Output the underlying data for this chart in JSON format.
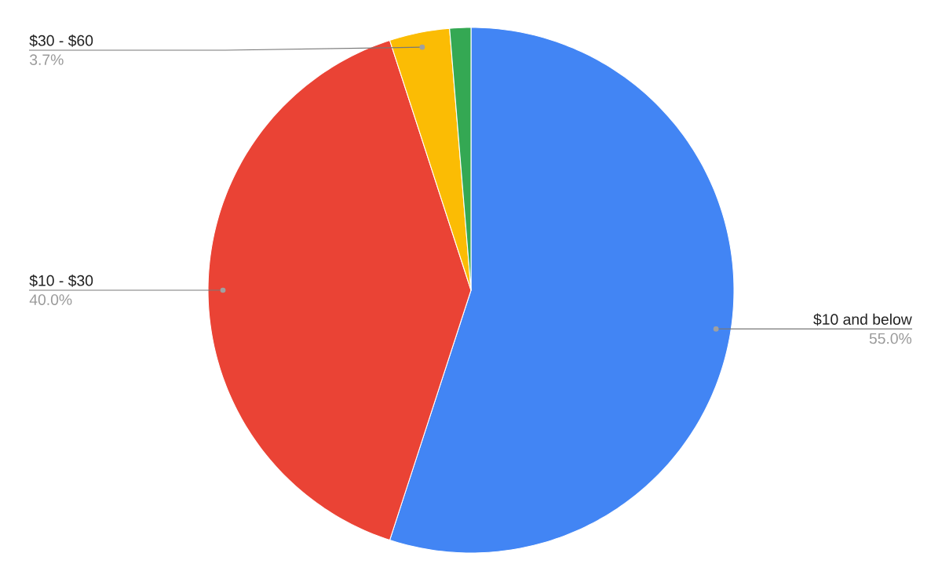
{
  "chart_data": {
    "type": "pie",
    "categories": [
      "$10 and below",
      "$10 - $30",
      "$30 - $60",
      null
    ],
    "values": [
      55.0,
      40.0,
      3.7,
      1.3
    ],
    "colors": [
      "#4285f4",
      "#ea4335",
      "#fbbc04",
      "#34a853"
    ],
    "value_labels": [
      "55.0%",
      "40.0%",
      "3.7%",
      null
    ]
  }
}
